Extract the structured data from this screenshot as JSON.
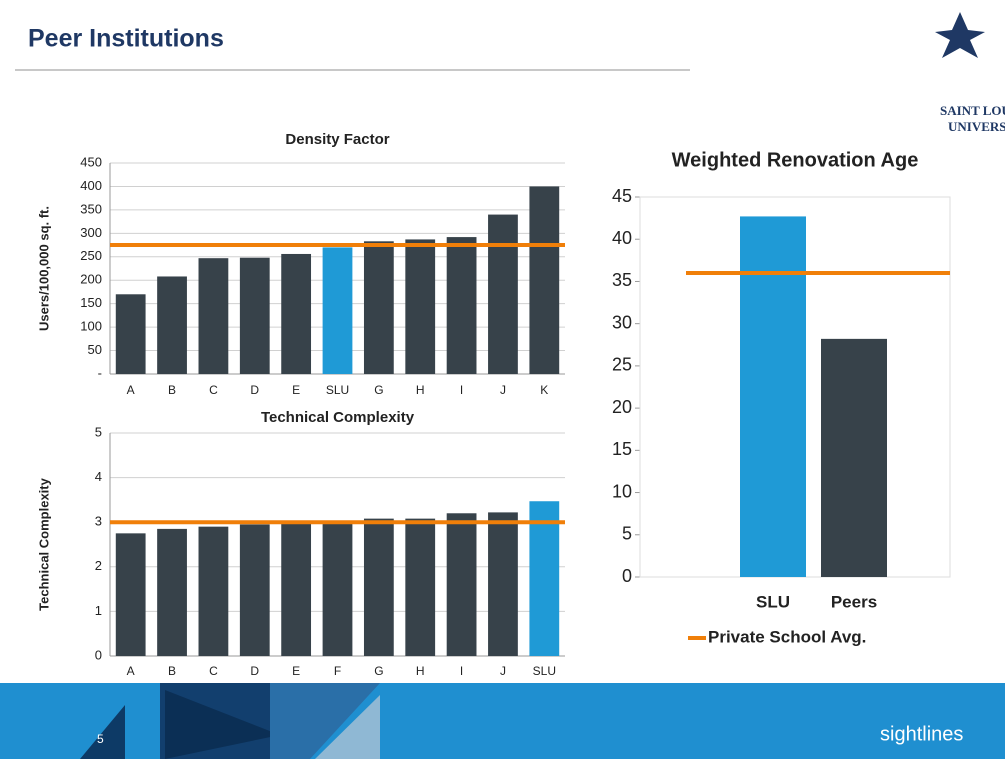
{
  "slide": {
    "title": "Peer Institutions",
    "logo_line1": "SAINT LOUIS",
    "logo_line2": "UNIVERSITY",
    "page_number": "5",
    "brand": "sightlines"
  },
  "chart_data": [
    {
      "type": "bar",
      "title": "Density Factor",
      "y_label": "Users/100,000 sq. ft.",
      "categories": [
        "A",
        "B",
        "C",
        "D",
        "E",
        "SLU",
        "G",
        "H",
        "I",
        "J",
        "K"
      ],
      "values": [
        170,
        208,
        247,
        248,
        256,
        270,
        283,
        287,
        292,
        340,
        400
      ],
      "colors": [
        "#37424a",
        "#37424a",
        "#37424a",
        "#37424a",
        "#37424a",
        "#1f9ad6",
        "#37424a",
        "#37424a",
        "#37424a",
        "#37424a",
        "#37424a"
      ],
      "ylim": [
        0,
        450
      ],
      "yticks": [
        {
          "value": 0,
          "label": "-"
        },
        50,
        100,
        150,
        200,
        250,
        300,
        350,
        400,
        450
      ],
      "grid": true,
      "reference_line": {
        "value": 275,
        "color": "#f07f09"
      }
    },
    {
      "type": "bar",
      "title": "Technical Complexity",
      "y_label": "Technical Complexity",
      "categories": [
        "A",
        "B",
        "C",
        "D",
        "E",
        "F",
        "G",
        "H",
        "I",
        "J",
        "SLU"
      ],
      "values": [
        2.75,
        2.85,
        2.9,
        2.95,
        3.0,
        3.0,
        3.08,
        3.08,
        3.2,
        3.22,
        3.47
      ],
      "colors": [
        "#37424a",
        "#37424a",
        "#37424a",
        "#37424a",
        "#37424a",
        "#37424a",
        "#37424a",
        "#37424a",
        "#37424a",
        "#37424a",
        "#1f9ad6"
      ],
      "ylim": [
        0,
        5
      ],
      "yticks": [
        0,
        1,
        2,
        3,
        4,
        5
      ],
      "grid": true,
      "reference_line": {
        "value": 3,
        "color": "#f07f09"
      }
    },
    {
      "type": "bar",
      "title": "Weighted Renovation Age",
      "categories": [
        "SLU",
        "Peers"
      ],
      "values": [
        42.7,
        28.2
      ],
      "colors": [
        "#1f9ad6",
        "#37424a"
      ],
      "ylim": [
        0,
        45
      ],
      "yticks": [
        0,
        5,
        10,
        15,
        20,
        25,
        30,
        35,
        40,
        45
      ],
      "grid": false,
      "reference_line": {
        "value": 36,
        "color": "#f07f09",
        "name": "Private School Avg."
      }
    }
  ]
}
